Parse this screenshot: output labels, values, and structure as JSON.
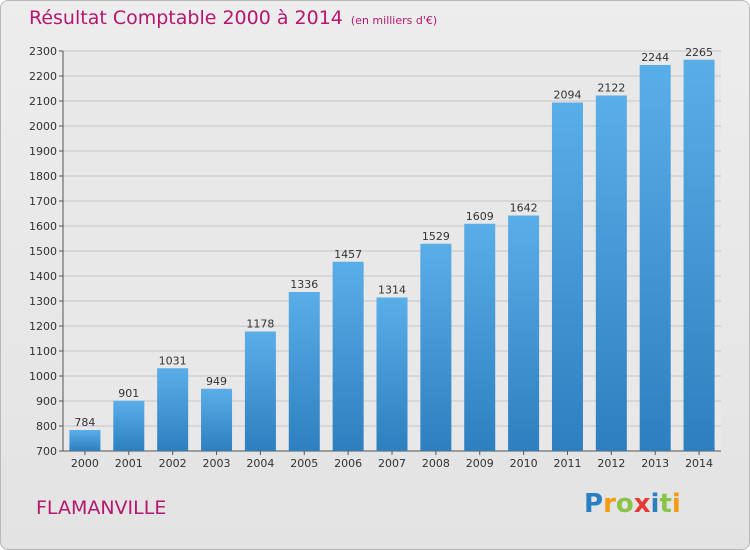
{
  "title": "Résultat Comptable 2000 à 2014",
  "unit": "(en milliers d'€)",
  "commune": "FLAMANVILLE",
  "logo": {
    "letters": [
      "P",
      "r",
      "o",
      "x",
      "i",
      "t",
      "i"
    ],
    "colors": [
      "#2a7fc0",
      "#f39c12",
      "#8bc34a",
      "#e53935",
      "#2a7fc0",
      "#8bc34a",
      "#f39c12"
    ]
  },
  "colors": {
    "title": "#b5166f",
    "bar_top": "#5aaee8",
    "bar_bottom": "#2d7fbf"
  },
  "chart_data": {
    "type": "bar",
    "categories": [
      "2000",
      "2001",
      "2002",
      "2003",
      "2004",
      "2005",
      "2006",
      "2007",
      "2008",
      "2009",
      "2010",
      "2011",
      "2012",
      "2013",
      "2014"
    ],
    "values": [
      784,
      901,
      1031,
      949,
      1178,
      1336,
      1457,
      1314,
      1529,
      1609,
      1642,
      2094,
      2122,
      2244,
      2265
    ],
    "ylim": [
      700,
      2300
    ],
    "yticks": [
      700,
      800,
      900,
      1000,
      1100,
      1200,
      1300,
      1400,
      1500,
      1600,
      1700,
      1800,
      1900,
      2000,
      2100,
      2200,
      2300
    ],
    "grid": true
  }
}
